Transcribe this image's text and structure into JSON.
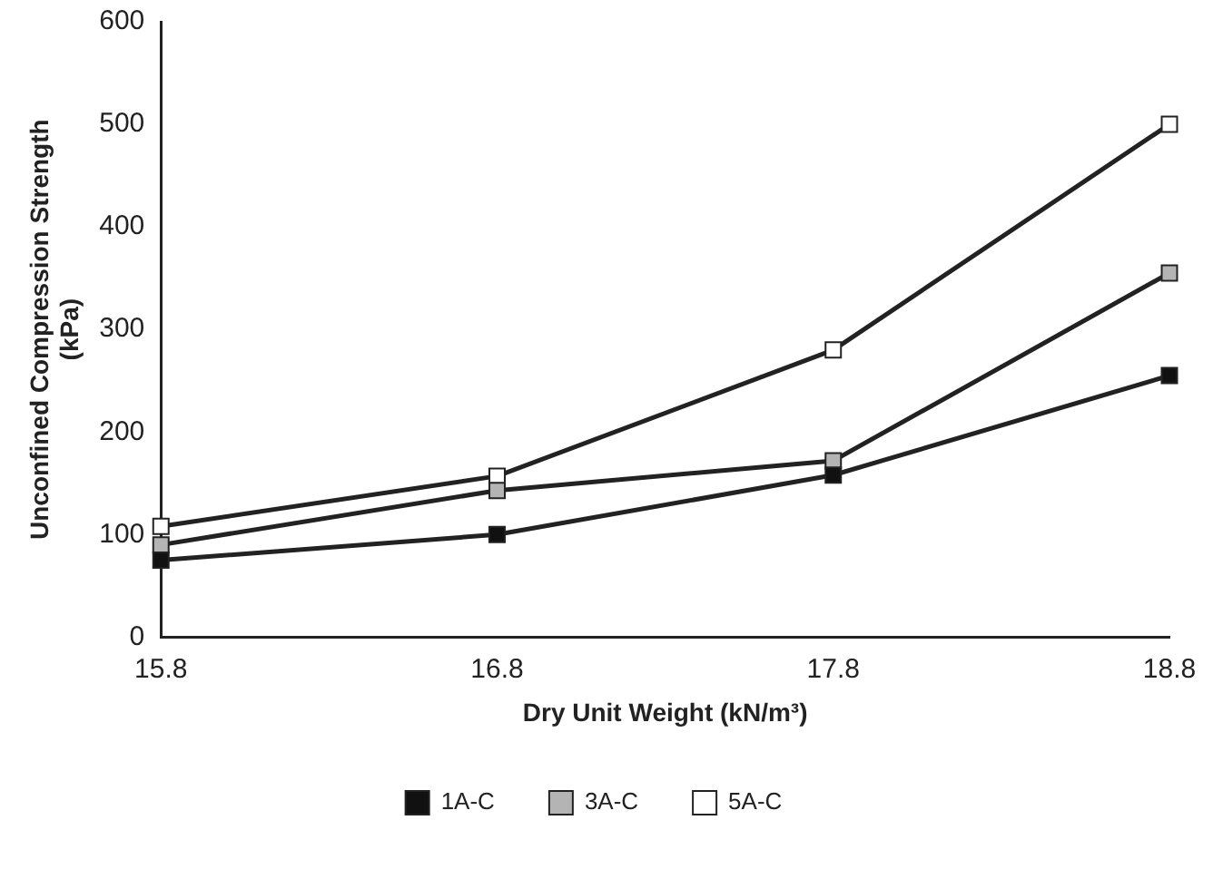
{
  "chart_data": {
    "type": "line",
    "xlabel": "Dry Unit Weight (kN/m³)",
    "ylabel": "Unconfined Compression Strength\n(kPa)",
    "x": [
      15.8,
      16.8,
      17.8,
      18.8
    ],
    "xlim": [
      15.8,
      18.8
    ],
    "xticks": [
      15.8,
      16.8,
      17.8,
      18.8
    ],
    "ylim": [
      0,
      600
    ],
    "yticks": [
      0,
      100,
      200,
      300,
      400,
      500,
      600
    ],
    "series": [
      {
        "name": "1A-C",
        "color": "#111111",
        "values": [
          75,
          100,
          158,
          255
        ]
      },
      {
        "name": "3A-C",
        "color": "#b4b4b4",
        "values": [
          90,
          143,
          172,
          355
        ]
      },
      {
        "name": "5A-C",
        "color": "#ffffff",
        "values": [
          108,
          157,
          280,
          500
        ]
      }
    ],
    "marker": "square",
    "line_style": "solid",
    "legend": "bottom",
    "grid": false
  }
}
